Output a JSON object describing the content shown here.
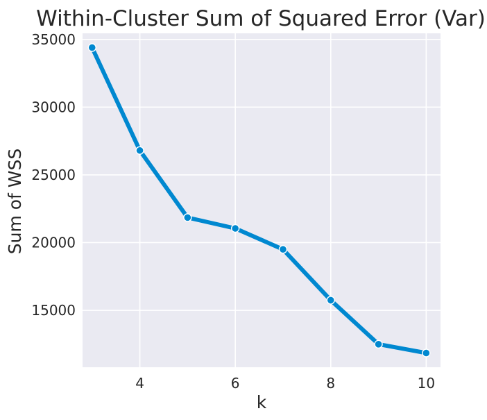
{
  "chart_data": {
    "type": "line",
    "title": "Within-Cluster Sum of Squared Error (Var)",
    "xlabel": "k",
    "ylabel": "Sum of WSS",
    "x": [
      3,
      4,
      5,
      6,
      7,
      8,
      9,
      10
    ],
    "series": [
      {
        "values": [
          34400,
          26800,
          21850,
          21050,
          19500,
          15750,
          12500,
          11850
        ],
        "color": "#0088d0"
      }
    ],
    "xlim": [
      2.8,
      10.3
    ],
    "ylim": [
      10800,
      35450
    ],
    "xticks": [
      4,
      6,
      8,
      10
    ],
    "xtick_labels": [
      "4",
      "6",
      "8",
      "10"
    ],
    "yticks": [
      15000,
      20000,
      25000,
      30000,
      35000
    ],
    "ytick_labels": [
      "15000",
      "20000",
      "25000",
      "30000",
      "35000"
    ],
    "grid": true,
    "markers": true
  }
}
